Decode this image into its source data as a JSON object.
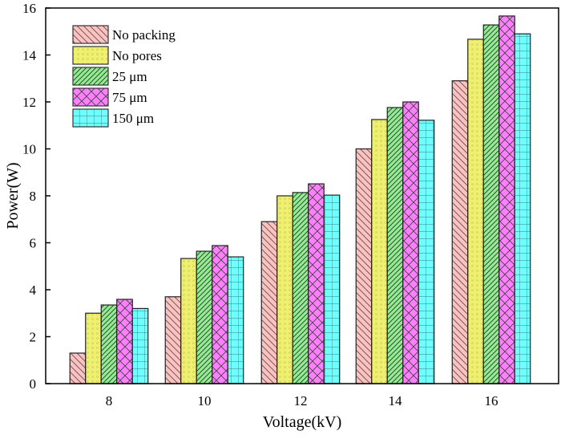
{
  "chart_data": {
    "type": "bar",
    "title": "",
    "xlabel": "Voltage(kV)",
    "ylabel": "Power(W)",
    "ylim": [
      0,
      16
    ],
    "yticks": [
      0,
      2,
      4,
      6,
      8,
      10,
      12,
      14,
      16
    ],
    "categories": [
      "8",
      "10",
      "12",
      "14",
      "16"
    ],
    "grid": false,
    "legend_position": "top-left",
    "series": [
      {
        "name": "No packing",
        "color": "#ffc0c0",
        "pattern": "back-diagonal",
        "values": [
          1.3,
          3.7,
          6.9,
          10.0,
          12.9
        ]
      },
      {
        "name": "No pores",
        "color": "#f0f070",
        "pattern": "dots",
        "values": [
          3.0,
          5.33,
          8.0,
          11.25,
          14.67
        ]
      },
      {
        "name": "25 μm",
        "color": "#90ee90",
        "pattern": "forward-diagonal",
        "values": [
          3.35,
          5.64,
          8.14,
          11.76,
          15.28
        ]
      },
      {
        "name": "75 μm",
        "color": "#ff80ff",
        "pattern": "crosshatch",
        "values": [
          3.59,
          5.88,
          8.51,
          12.0,
          15.66
        ]
      },
      {
        "name": "150 μm",
        "color": "#70ffff",
        "pattern": "grid",
        "values": [
          3.2,
          5.4,
          8.03,
          11.22,
          14.9
        ]
      }
    ]
  }
}
